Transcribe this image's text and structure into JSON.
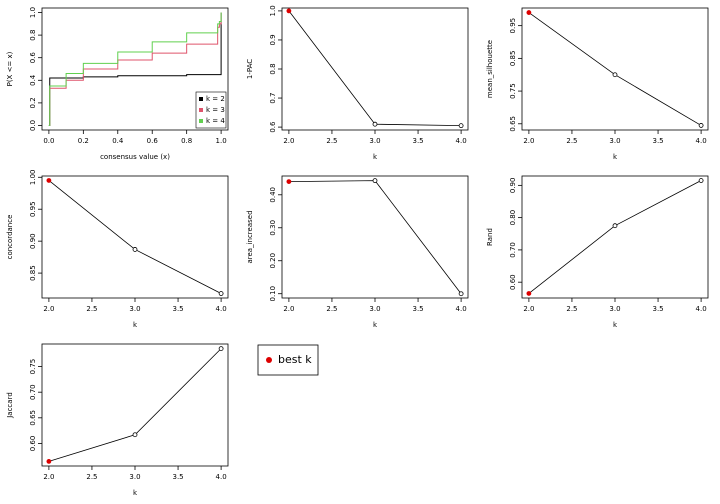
{
  "chart_data": [
    {
      "type": "step",
      "xlabel": "consensus value (x)",
      "ylabel": "P(X <= x)",
      "x": [
        0,
        0.005,
        0.1,
        0.2,
        0.4,
        0.6,
        0.8,
        0.98,
        0.99,
        1
      ],
      "series": [
        {
          "name": "k = 2",
          "color": "#000000",
          "values": [
            0,
            0.42,
            0.42,
            0.43,
            0.44,
            0.44,
            0.45,
            0.45,
            0.45,
            1.0
          ]
        },
        {
          "name": "k = 3",
          "color": "#DF536B",
          "values": [
            0,
            0.33,
            0.4,
            0.5,
            0.58,
            0.64,
            0.72,
            0.87,
            0.9,
            1.0
          ]
        },
        {
          "name": "k = 4",
          "color": "#61D04F",
          "values": [
            0,
            0.35,
            0.46,
            0.55,
            0.65,
            0.74,
            0.82,
            0.9,
            0.92,
            1.0
          ]
        }
      ],
      "xlim": [
        -0.04,
        1.04
      ],
      "ylim": [
        -0.04,
        1.04
      ],
      "xticks": [
        {
          "value": 0,
          "label": "0.0"
        },
        0.2,
        0.4,
        0.6,
        0.8,
        {
          "value": 1,
          "label": "1.0"
        }
      ],
      "yticks": [
        {
          "value": 0,
          "label": "0.0"
        },
        0.2,
        0.4,
        0.6,
        0.8,
        {
          "value": 1,
          "label": "1.0"
        }
      ],
      "legend": "bottom-right"
    },
    {
      "type": "line",
      "xlabel": "k",
      "ylabel": "1-PAC",
      "x": [
        2,
        3,
        4
      ],
      "values": [
        1.0,
        0.61,
        0.605
      ],
      "color": "#000000",
      "highlight_index": 0,
      "highlight_color": "#DD0000",
      "xlim": [
        1.92,
        4.08
      ],
      "ylim": [
        0.59,
        1.01
      ],
      "xticks": [
        {
          "value": 2,
          "label": "2.0"
        },
        2.5,
        {
          "value": 3,
          "label": "3.0"
        },
        3.5,
        {
          "value": 4,
          "label": "4.0"
        }
      ],
      "yticks": [
        0.6,
        0.7,
        0.8,
        0.9,
        {
          "value": 1,
          "label": "1.0"
        }
      ]
    },
    {
      "type": "line",
      "xlabel": "k",
      "ylabel": "mean_silhouette",
      "x": [
        2,
        3,
        4
      ],
      "values": [
        0.99,
        0.8,
        0.645
      ],
      "color": "#000000",
      "highlight_index": 0,
      "highlight_color": "#DD0000",
      "xlim": [
        1.92,
        4.08
      ],
      "ylim": [
        0.631,
        1.004
      ],
      "xticks": [
        {
          "value": 2,
          "label": "2.0"
        },
        2.5,
        {
          "value": 3,
          "label": "3.0"
        },
        3.5,
        {
          "value": 4,
          "label": "4.0"
        }
      ],
      "yticks": [
        0.65,
        0.75,
        0.85,
        0.95
      ]
    },
    {
      "type": "line",
      "xlabel": "k",
      "ylabel": "concordance",
      "x": [
        2,
        3,
        4
      ],
      "values": [
        0.995,
        0.887,
        0.818
      ],
      "color": "#000000",
      "highlight_index": 0,
      "highlight_color": "#DD0000",
      "xlim": [
        1.92,
        4.08
      ],
      "ylim": [
        0.811,
        1.002
      ],
      "xticks": [
        {
          "value": 2,
          "label": "2.0"
        },
        2.5,
        {
          "value": 3,
          "label": "3.0"
        },
        3.5,
        {
          "value": 4,
          "label": "4.0"
        }
      ],
      "yticks": [
        0.85,
        {
          "value": 0.9,
          "label": "0.90"
        },
        0.95,
        {
          "value": 1,
          "label": "1.00"
        }
      ]
    },
    {
      "type": "line",
      "xlabel": "k",
      "ylabel": "area_increased",
      "x": [
        2,
        3,
        4
      ],
      "values": [
        0.44,
        0.443,
        0.1
      ],
      "color": "#000000",
      "highlight_index": 0,
      "highlight_color": "#DD0000",
      "xlim": [
        1.92,
        4.08
      ],
      "ylim": [
        0.087,
        0.457
      ],
      "xticks": [
        {
          "value": 2,
          "label": "2.0"
        },
        2.5,
        {
          "value": 3,
          "label": "3.0"
        },
        3.5,
        {
          "value": 4,
          "label": "4.0"
        }
      ],
      "yticks": [
        {
          "value": 0.1,
          "label": "0.10"
        },
        {
          "value": 0.2,
          "label": "0.20"
        },
        {
          "value": 0.3,
          "label": "0.30"
        },
        {
          "value": 0.4,
          "label": "0.40"
        }
      ]
    },
    {
      "type": "line",
      "xlabel": "k",
      "ylabel": "Rand",
      "x": [
        2,
        3,
        4
      ],
      "values": [
        0.565,
        0.775,
        0.915
      ],
      "color": "#000000",
      "highlight_index": 0,
      "highlight_color": "#DD0000",
      "xlim": [
        1.92,
        4.08
      ],
      "ylim": [
        0.551,
        0.929
      ],
      "xticks": [
        {
          "value": 2,
          "label": "2.0"
        },
        2.5,
        {
          "value": 3,
          "label": "3.0"
        },
        3.5,
        {
          "value": 4,
          "label": "4.0"
        }
      ],
      "yticks": [
        {
          "value": 0.6,
          "label": "0.60"
        },
        {
          "value": 0.7,
          "label": "0.70"
        },
        {
          "value": 0.8,
          "label": "0.80"
        },
        {
          "value": 0.9,
          "label": "0.90"
        }
      ]
    },
    {
      "type": "line",
      "xlabel": "k",
      "ylabel": "Jaccard",
      "x": [
        2,
        3,
        4
      ],
      "values": [
        0.565,
        0.617,
        0.785
      ],
      "color": "#000000",
      "highlight_index": 0,
      "highlight_color": "#DD0000",
      "xlim": [
        1.92,
        4.08
      ],
      "ylim": [
        0.556,
        0.794
      ],
      "xticks": [
        {
          "value": 2,
          "label": "2.0"
        },
        2.5,
        {
          "value": 3,
          "label": "3.0"
        },
        3.5,
        {
          "value": 4,
          "label": "4.0"
        }
      ],
      "yticks": [
        {
          "value": 0.6,
          "label": "0.60"
        },
        0.65,
        {
          "value": 0.7,
          "label": "0.70"
        },
        0.75
      ]
    }
  ],
  "legend": {
    "label": "best k",
    "color": "#DD0000"
  }
}
